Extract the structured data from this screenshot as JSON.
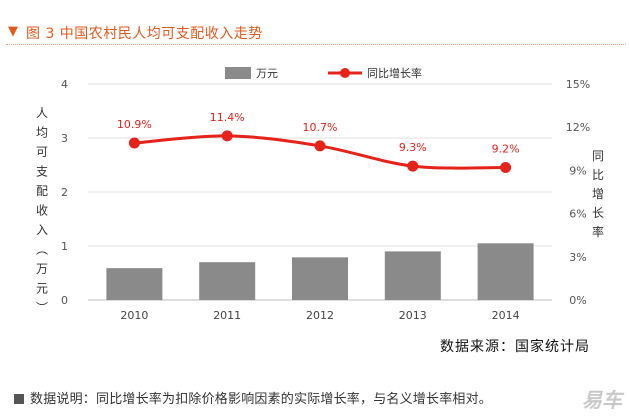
{
  "header": {
    "title": "图 3  中国农村民人均可支配收入走势"
  },
  "chart_data": {
    "type": "bar",
    "categories": [
      "2010",
      "2011",
      "2012",
      "2013",
      "2014"
    ],
    "series": [
      {
        "name": "万元",
        "type": "bar",
        "axis": "left",
        "color": "#8a8a8a",
        "values": [
          0.59,
          0.7,
          0.79,
          0.9,
          1.05
        ]
      },
      {
        "name": "同比增长率",
        "type": "line",
        "axis": "right",
        "color": "#e5231b",
        "values": [
          10.9,
          11.4,
          10.7,
          9.3,
          9.2
        ],
        "labels": [
          "10.9%",
          "11.4%",
          "10.7%",
          "9.3%",
          "9.2%"
        ]
      }
    ],
    "ylabel": "人均可支配收入（万元）",
    "y2label": "同比增长率",
    "ylim": [
      0,
      4
    ],
    "yticks": [
      "0",
      "1",
      "2",
      "3",
      "4"
    ],
    "y2lim": [
      0,
      15
    ],
    "y2ticks": [
      "0%",
      "3%",
      "6%",
      "9%",
      "12%",
      "15%"
    ],
    "grid": true,
    "legend_position": "top-center"
  },
  "footer": {
    "source": "数据来源：国家统计局",
    "note": "数据说明：同比增长率为扣除价格影响因素的实际增长率，与名义增长率相对。",
    "watermark": "易车"
  }
}
